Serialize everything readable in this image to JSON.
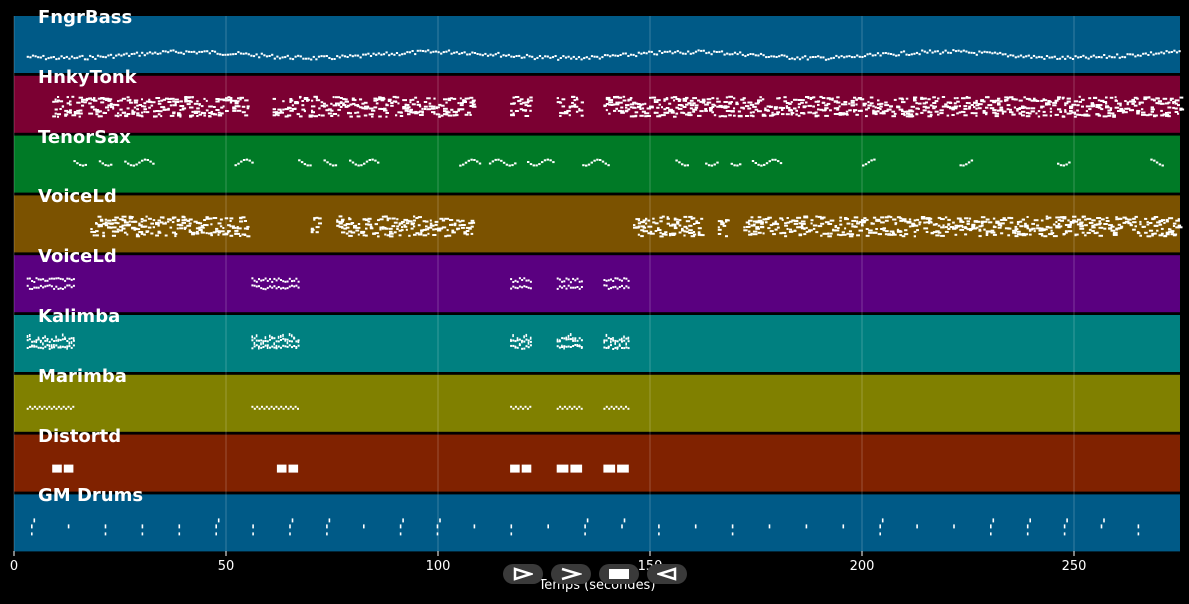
{
  "chart_data": {
    "type": "piano-roll",
    "xlabel": "Temps (secondes)",
    "xlim": [
      0,
      275
    ],
    "xticks": [
      0,
      50,
      100,
      150,
      200,
      250
    ],
    "tracks": [
      {
        "name": "FngrBass",
        "color": "#005a87",
        "style": "continuous-low",
        "segments": [
          [
            3,
            275
          ]
        ]
      },
      {
        "name": "HnkyTonk",
        "color": "#7b0032",
        "style": "dense-chords",
        "segments": [
          [
            9,
            55
          ],
          [
            61,
            108
          ],
          [
            117,
            122
          ],
          [
            128,
            134
          ],
          [
            139,
            275
          ]
        ]
      },
      {
        "name": "TenorSax",
        "color": "#007a26",
        "style": "sparse-phrases",
        "segments": [
          [
            14,
            17
          ],
          [
            20,
            23
          ],
          [
            26,
            33
          ],
          [
            52,
            56
          ],
          [
            67,
            70
          ],
          [
            73,
            76
          ],
          [
            79,
            86
          ],
          [
            105,
            110
          ],
          [
            112,
            118
          ],
          [
            121,
            127
          ],
          [
            134,
            140
          ],
          [
            156,
            159
          ],
          [
            163,
            166
          ],
          [
            169,
            171
          ],
          [
            174,
            181
          ],
          [
            200,
            203
          ],
          [
            223,
            226
          ],
          [
            246,
            249
          ],
          [
            268,
            271
          ]
        ]
      },
      {
        "name": "VoiceLd",
        "color": "#7b5200",
        "style": "dense-chords",
        "segments": [
          [
            18,
            55
          ],
          [
            70,
            72
          ],
          [
            76,
            108
          ],
          [
            146,
            162
          ],
          [
            166,
            168
          ],
          [
            172,
            275
          ]
        ]
      },
      {
        "name": "VoiceLd",
        "color": "#5a0080",
        "style": "blocks",
        "segments": [
          [
            3,
            14
          ],
          [
            56,
            67
          ],
          [
            117,
            122
          ],
          [
            128,
            134
          ],
          [
            139,
            145
          ]
        ]
      },
      {
        "name": "Kalimba",
        "color": "#008080",
        "style": "blocks-tall",
        "segments": [
          [
            3,
            14
          ],
          [
            56,
            67
          ],
          [
            117,
            122
          ],
          [
            128,
            134
          ],
          [
            139,
            145
          ]
        ]
      },
      {
        "name": "Marimba",
        "color": "#808000",
        "style": "zigzag",
        "segments": [
          [
            3,
            14
          ],
          [
            56,
            67
          ],
          [
            117,
            122
          ],
          [
            128,
            134
          ],
          [
            139,
            145
          ]
        ]
      },
      {
        "name": "Distortd",
        "color": "#802200",
        "style": "solid-blocks",
        "segments": [
          [
            9,
            14
          ],
          [
            62,
            67
          ],
          [
            117,
            122
          ],
          [
            128,
            134
          ],
          [
            139,
            145
          ]
        ]
      },
      {
        "name": "GM Drums",
        "color": "#005a87",
        "style": "drum-ticks",
        "segments": [
          [
            3,
            270
          ]
        ]
      }
    ]
  },
  "controls": {
    "play_icon": "play-outline-icon",
    "forward_icon": "forward-chevron-icon",
    "stop_icon": "stop-icon",
    "back_icon": "back-triangle-icon"
  }
}
